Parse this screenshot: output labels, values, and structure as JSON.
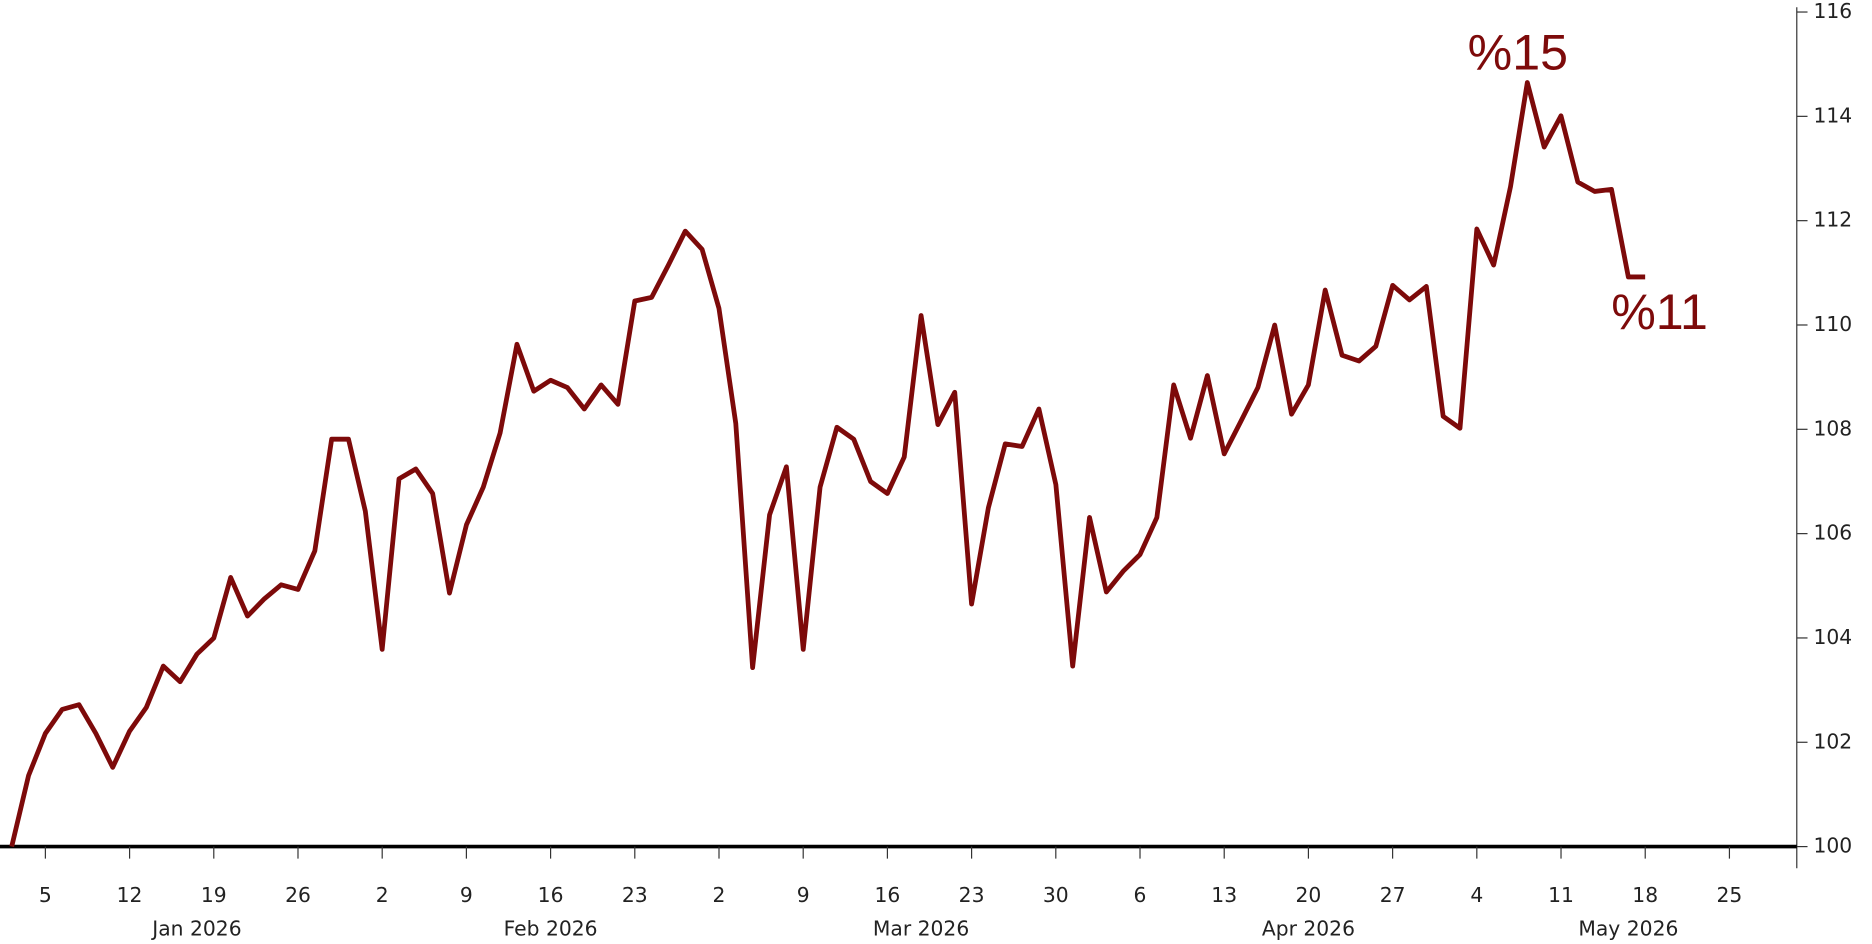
{
  "chart_data": {
    "type": "line",
    "x": [
      "2026-01-01",
      "2026-01-02",
      "2026-01-05",
      "2026-01-06",
      "2026-01-07",
      "2026-01-08",
      "2026-01-09",
      "2026-01-12",
      "2026-01-13",
      "2026-01-14",
      "2026-01-15",
      "2026-01-16",
      "2026-01-19",
      "2026-01-20",
      "2026-01-21",
      "2026-01-22",
      "2026-01-23",
      "2026-01-26",
      "2026-01-27",
      "2026-01-28",
      "2026-01-29",
      "2026-01-30",
      "2026-02-02",
      "2026-02-03",
      "2026-02-04",
      "2026-02-05",
      "2026-02-06",
      "2026-02-09",
      "2026-02-10",
      "2026-02-11",
      "2026-02-12",
      "2026-02-13",
      "2026-02-16",
      "2026-02-17",
      "2026-02-18",
      "2026-02-19",
      "2026-02-20",
      "2026-02-23",
      "2026-02-24",
      "2026-02-25",
      "2026-02-26",
      "2026-02-27",
      "2026-03-02",
      "2026-03-03",
      "2026-03-04",
      "2026-03-05",
      "2026-03-06",
      "2026-03-09",
      "2026-03-10",
      "2026-03-11",
      "2026-03-12",
      "2026-03-13",
      "2026-03-16",
      "2026-03-17",
      "2026-03-18",
      "2026-03-19",
      "2026-03-20",
      "2026-03-23",
      "2026-03-24",
      "2026-03-25",
      "2026-03-26",
      "2026-03-27",
      "2026-03-30",
      "2026-03-31",
      "2026-04-01",
      "2026-04-02",
      "2026-04-03",
      "2026-04-06",
      "2026-04-07",
      "2026-04-08",
      "2026-04-09",
      "2026-04-10",
      "2026-04-13",
      "2026-04-14",
      "2026-04-15",
      "2026-04-16",
      "2026-04-17",
      "2026-04-20",
      "2026-04-21",
      "2026-04-22",
      "2026-04-23",
      "2026-04-24",
      "2026-04-27",
      "2026-04-28",
      "2026-04-29",
      "2026-04-30",
      "2026-05-01",
      "2026-05-04",
      "2026-05-05",
      "2026-05-06",
      "2026-05-07",
      "2026-05-08",
      "2026-05-11",
      "2026-05-12",
      "2026-05-13",
      "2026-05-14",
      "2026-05-15",
      "2026-05-18"
    ],
    "series": [
      {
        "color": "#7d0a0a",
        "values": [
          100,
          101.36,
          102.17,
          102.63,
          102.72,
          102.17,
          101.52,
          102.21,
          102.67,
          103.46,
          103.16,
          103.69,
          104.0,
          105.16,
          104.42,
          104.75,
          105.02,
          104.93,
          105.67,
          107.81,
          107.81,
          106.43,
          103.78,
          107.05,
          107.24,
          106.77,
          104.86,
          106.17,
          106.89,
          107.93,
          109.63,
          108.73,
          108.94,
          108.8,
          108.39,
          108.85,
          108.48,
          110.46,
          110.53,
          111.15,
          111.8,
          111.45,
          110.32,
          108.11,
          103.43,
          106.36,
          107.28,
          103.78,
          106.89,
          108.04,
          107.81,
          107.0,
          106.77,
          107.47,
          110.18,
          108.09,
          108.71,
          104.65,
          106.5,
          107.72,
          107.67,
          108.39,
          106.94,
          103.46,
          106.31,
          104.88,
          105.28,
          105.6,
          106.31,
          108.85,
          107.83,
          109.03,
          107.53,
          108.16,
          108.8,
          110.0,
          108.29,
          108.85,
          110.67,
          109.42,
          109.31,
          109.59,
          110.76,
          110.48,
          110.74,
          108.25,
          108.02,
          111.84,
          111.15,
          112.65,
          114.65,
          113.41,
          114.01,
          112.74,
          112.56,
          112.6,
          110.92,
          110.92
        ]
      }
    ],
    "xlim": [
      "2026-01-01",
      "2026-05-29"
    ],
    "xticks": [
      {
        "value": "2026-01-05",
        "label": "5"
      },
      {
        "value": "2026-01-12",
        "label": "12"
      },
      {
        "value": "2026-01-19",
        "label": "19"
      },
      {
        "value": "2026-01-26",
        "label": "26"
      },
      {
        "value": "2026-02-02",
        "label": "2"
      },
      {
        "value": "2026-02-09",
        "label": "9"
      },
      {
        "value": "2026-02-16",
        "label": "16"
      },
      {
        "value": "2026-02-23",
        "label": "23"
      },
      {
        "value": "2026-03-02",
        "label": "2"
      },
      {
        "value": "2026-03-09",
        "label": "9"
      },
      {
        "value": "2026-03-16",
        "label": "16"
      },
      {
        "value": "2026-03-23",
        "label": "23"
      },
      {
        "value": "2026-03-30",
        "label": "30"
      },
      {
        "value": "2026-04-06",
        "label": "6"
      },
      {
        "value": "2026-04-13",
        "label": "13"
      },
      {
        "value": "2026-04-20",
        "label": "20"
      },
      {
        "value": "2026-04-27",
        "label": "27"
      },
      {
        "value": "2026-05-04",
        "label": "4"
      },
      {
        "value": "2026-05-11",
        "label": "11"
      },
      {
        "value": "2026-05-18",
        "label": "18"
      },
      {
        "value": "2026-05-25",
        "label": "25"
      }
    ],
    "month_labels": [
      {
        "value": "2026-01-16",
        "label": "Jan 2026"
      },
      {
        "value": "2026-02-16",
        "label": "Feb 2026"
      },
      {
        "value": "2026-03-18",
        "label": "Mar 2026"
      },
      {
        "value": "2026-04-20",
        "label": "Apr 2026"
      },
      {
        "value": "2026-05-15",
        "label": "May 2026"
      }
    ],
    "ylim": [
      100,
      116
    ],
    "yticks": [
      100,
      102,
      104,
      106,
      108,
      110,
      112,
      114,
      116
    ],
    "annotations": [
      {
        "text": "%15",
        "x": "2026-05-07",
        "y": 114.65
      },
      {
        "text": "%11",
        "x": "2026-05-18",
        "y": 110.92
      }
    ]
  }
}
